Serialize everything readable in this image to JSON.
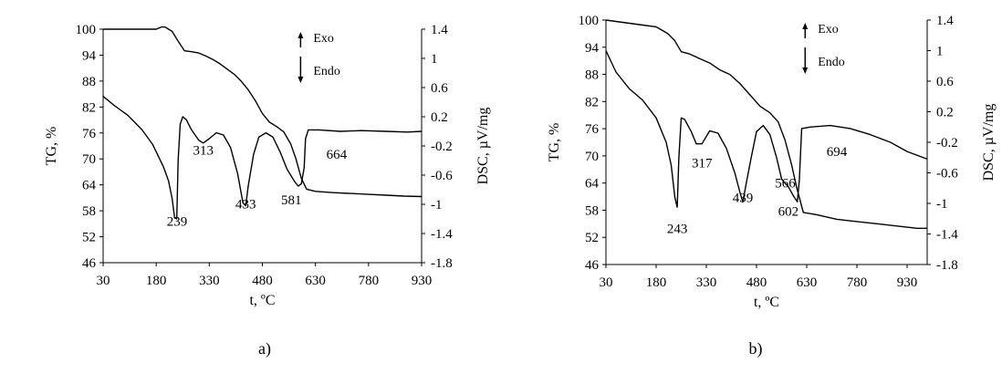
{
  "chart_data": [
    {
      "type": "line",
      "panel_label": "a)",
      "xlabel": "t, ºC",
      "ylabel": "TG, %",
      "y2label": "DSC, µV/mg",
      "xlim": [
        30,
        930
      ],
      "ylim": [
        46,
        100
      ],
      "y2lim": [
        -1.8,
        1.4
      ],
      "x_ticks": [
        "30",
        "180",
        "330",
        "480",
        "630",
        "780",
        "930"
      ],
      "y_ticks": [
        "100",
        "94",
        "88",
        "82",
        "76",
        "70",
        "64",
        "58",
        "52",
        "46"
      ],
      "y2_ticks": [
        "1.4",
        "1",
        "0.6",
        "0.2",
        "-0.2",
        "-0.6",
        "-1",
        "-1.4",
        "-1.8"
      ],
      "legend": {
        "exo": "Exo",
        "endo": "Endo",
        "position": "top-right"
      },
      "grid": false,
      "series": [
        {
          "axis": "left",
          "x": [
            30,
            100,
            150,
            180,
            195,
            205,
            215,
            225,
            240,
            260,
            280,
            300,
            320,
            340,
            360,
            380,
            400,
            420,
            440,
            460,
            480,
            500,
            520,
            540,
            560,
            575,
            590,
            605,
            630,
            680,
            730,
            780,
            830,
            880,
            930
          ],
          "y": [
            100,
            100,
            100,
            100,
            100.5,
            100.5,
            100,
            99.5,
            97.5,
            95,
            94.8,
            94.5,
            93.8,
            93,
            92,
            90.8,
            89.6,
            88,
            86,
            83.5,
            80.5,
            78.5,
            77.5,
            76.3,
            73.5,
            70,
            65.5,
            63,
            62.5,
            62.2,
            62,
            61.8,
            61.6,
            61.4,
            61.3
          ]
        },
        {
          "axis": "right",
          "x": [
            30,
            60,
            100,
            140,
            170,
            200,
            215,
            225,
            232,
            238,
            242,
            248,
            255,
            265,
            280,
            300,
            313,
            330,
            350,
            370,
            390,
            410,
            425,
            433,
            440,
            455,
            470,
            490,
            510,
            530,
            550,
            570,
            581,
            590,
            598,
            602,
            610,
            640,
            700,
            760,
            830,
            890,
            930
          ],
          "y": [
            0.48,
            0.36,
            0.22,
            0.02,
            -0.18,
            -0.48,
            -0.68,
            -0.92,
            -1.18,
            -1.2,
            -0.4,
            0.1,
            0.2,
            0.16,
            0.02,
            -0.12,
            -0.16,
            -0.1,
            -0.02,
            -0.05,
            -0.22,
            -0.58,
            -0.98,
            -1.02,
            -0.75,
            -0.32,
            -0.08,
            -0.02,
            -0.08,
            -0.28,
            -0.52,
            -0.68,
            -0.75,
            -0.72,
            -0.5,
            -0.1,
            0.02,
            0.02,
            0.0,
            0.01,
            -0.0,
            -0.01,
            0.0
          ]
        }
      ],
      "annotations": [
        {
          "text": "239",
          "x": 239,
          "y": 54.5
        },
        {
          "text": "313",
          "x": 313,
          "y": 71
        },
        {
          "text": "433",
          "x": 433,
          "y": 58.5
        },
        {
          "text": "581",
          "x": 562,
          "y": 59.5
        },
        {
          "text": "664",
          "x": 690,
          "y": 70
        }
      ]
    },
    {
      "type": "line",
      "panel_label": "b)",
      "xlabel": "t, ºC",
      "ylabel": "TG, %",
      "y2label": "DSC, µV/mg",
      "xlim": [
        30,
        990
      ],
      "ylim": [
        46,
        100
      ],
      "y2lim": [
        -1.8,
        1.4
      ],
      "x_ticks": [
        "30",
        "180",
        "330",
        "480",
        "630",
        "780",
        "930"
      ],
      "y_ticks": [
        "100",
        "94",
        "88",
        "82",
        "76",
        "70",
        "64",
        "58",
        "52",
        "46"
      ],
      "y2_ticks": [
        "1.4",
        "1",
        "0.6",
        "0.2",
        "-0.2",
        "-0.6",
        "-1",
        "-1.4",
        "-1.8"
      ],
      "legend": {
        "exo": "Exo",
        "endo": "Endo",
        "position": "top-right"
      },
      "grid": false,
      "series": [
        {
          "axis": "left",
          "x": [
            30,
            80,
            130,
            180,
            215,
            235,
            255,
            280,
            310,
            340,
            370,
            400,
            430,
            460,
            490,
            520,
            545,
            565,
            585,
            600,
            620,
            660,
            720,
            780,
            840,
            900,
            960,
            990
          ],
          "y": [
            100,
            99.5,
            99,
            98.5,
            97,
            95.5,
            93,
            92.5,
            91.5,
            90.5,
            89,
            88,
            86,
            83.5,
            81,
            79.5,
            77.5,
            73.5,
            68,
            63,
            57.5,
            57,
            56,
            55.5,
            55,
            54.5,
            54,
            54
          ]
        },
        {
          "axis": "right",
          "x": [
            30,
            60,
            100,
            140,
            180,
            210,
            225,
            236,
            243,
            248,
            255,
            265,
            285,
            300,
            317,
            340,
            365,
            390,
            415,
            430,
            439,
            450,
            465,
            480,
            500,
            520,
            540,
            555,
            566,
            575,
            590,
            602,
            608,
            615,
            640,
            700,
            760,
            820,
            880,
            930,
            990
          ],
          "y": [
            1.0,
            0.72,
            0.5,
            0.35,
            0.12,
            -0.2,
            -0.5,
            -0.92,
            -1.05,
            -0.4,
            0.12,
            0.1,
            -0.06,
            -0.22,
            -0.22,
            -0.05,
            -0.08,
            -0.28,
            -0.6,
            -0.85,
            -0.98,
            -0.72,
            -0.38,
            -0.06,
            0.02,
            -0.1,
            -0.4,
            -0.68,
            -0.74,
            -0.78,
            -0.9,
            -0.98,
            -0.7,
            -0.02,
            0.0,
            0.02,
            -0.02,
            -0.1,
            -0.2,
            -0.32,
            -0.42
          ]
        }
      ],
      "annotations": [
        {
          "text": "243",
          "x": 243,
          "y": 53
        },
        {
          "text": "317",
          "x": 317,
          "y": 67.5
        },
        {
          "text": "439",
          "x": 439,
          "y": 59.8
        },
        {
          "text": "566",
          "x": 566,
          "y": 63
        },
        {
          "text": "602",
          "x": 575,
          "y": 56.8
        },
        {
          "text": "694",
          "x": 720,
          "y": 70
        }
      ]
    }
  ]
}
